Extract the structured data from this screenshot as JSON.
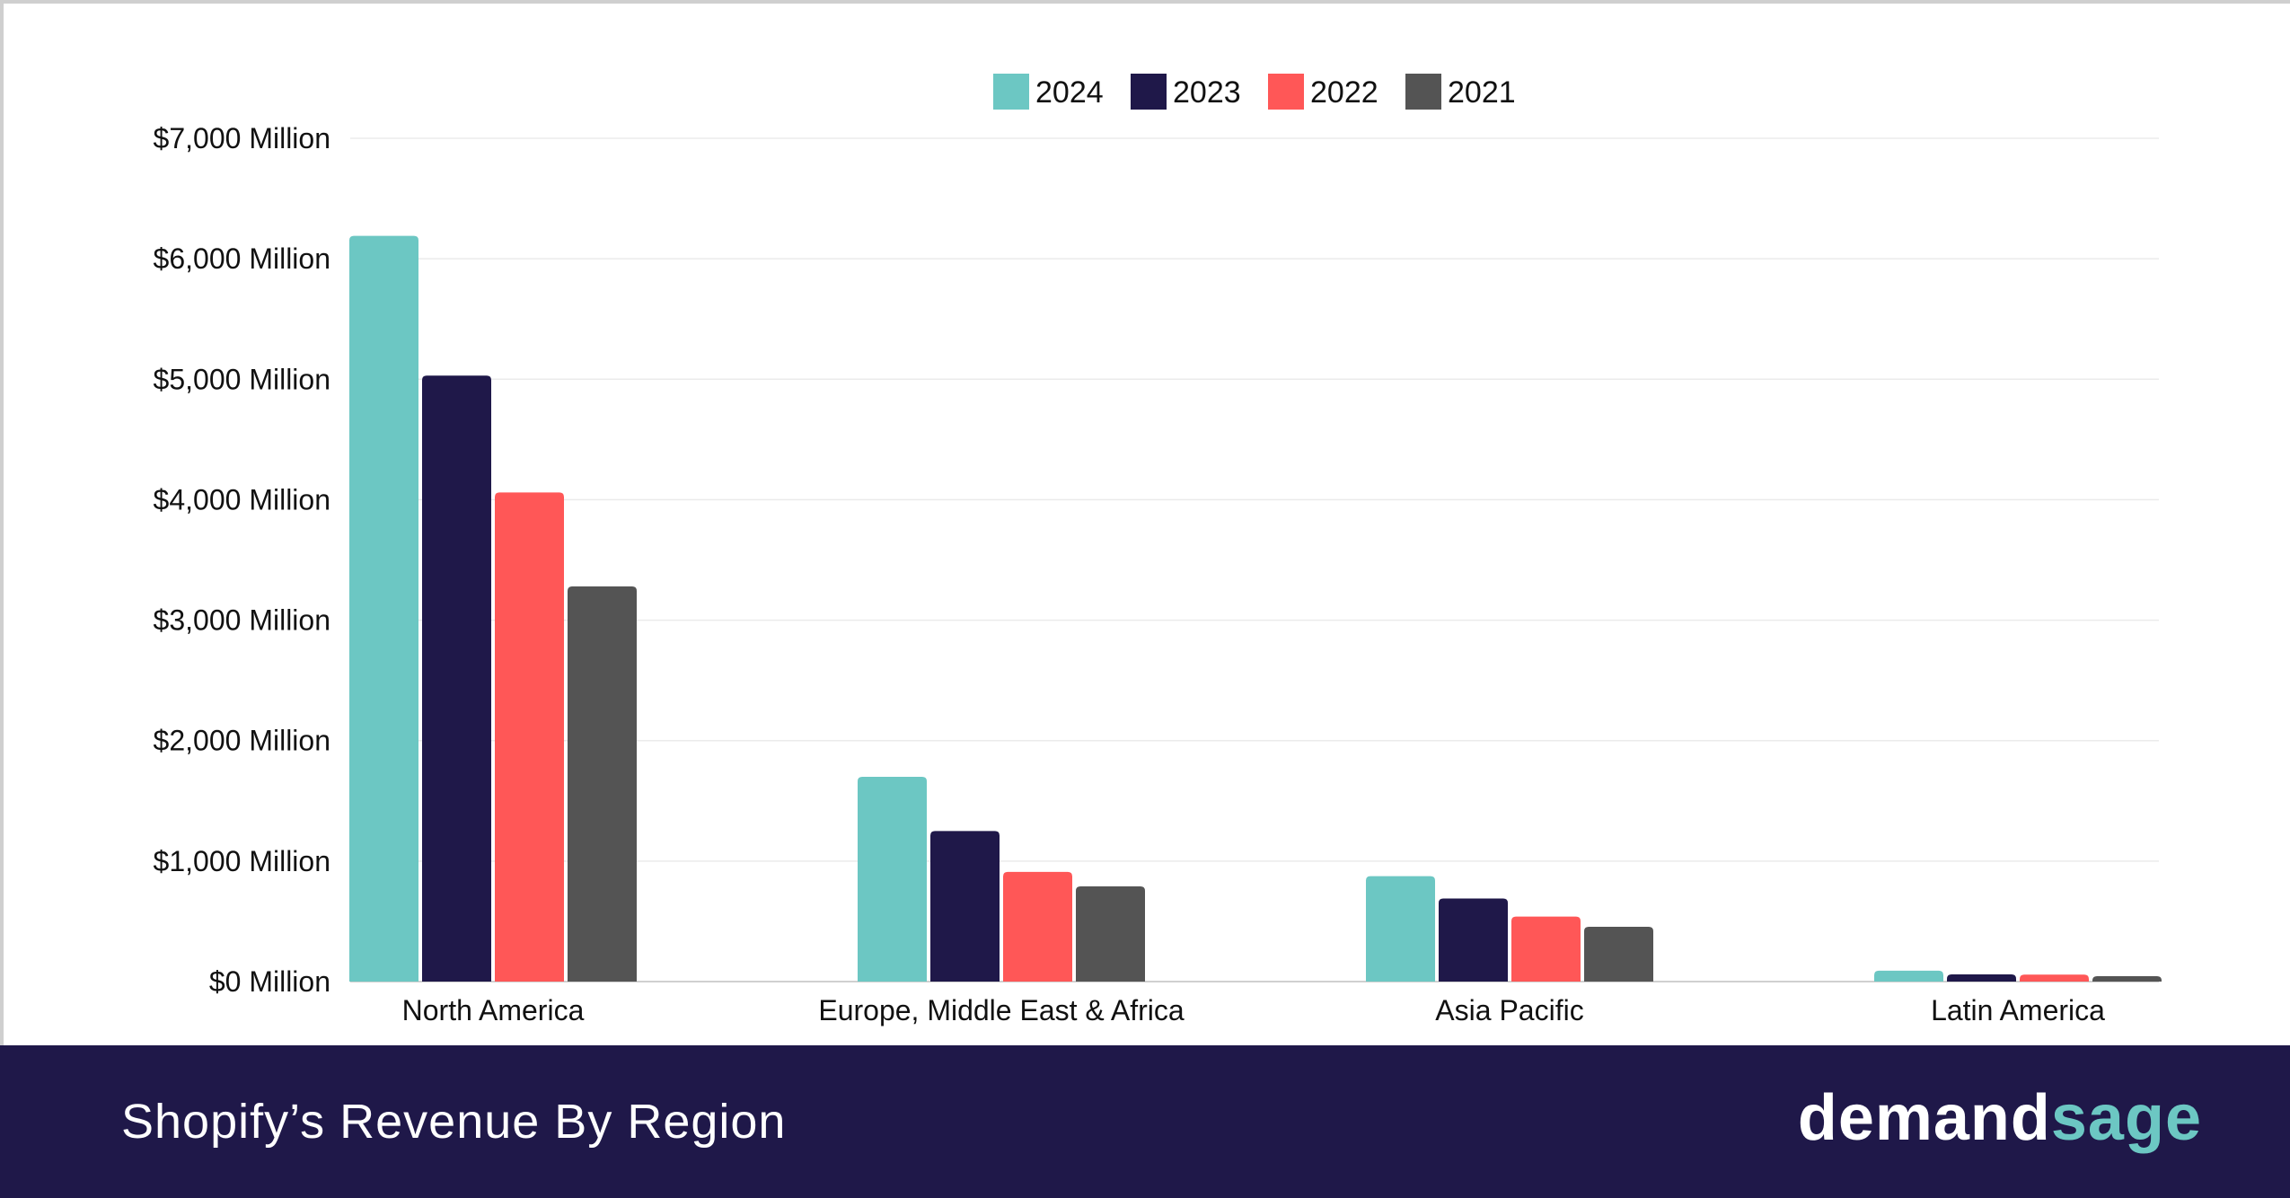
{
  "chart_data": {
    "type": "bar",
    "title": "Shopify’s Revenue By Region",
    "categories": [
      "North America",
      "Europe, Middle East & Africa",
      "Asia Pacific",
      "Latin America"
    ],
    "series": [
      {
        "name": "2024",
        "color": "#6cc7c3",
        "values": [
          6190,
          1700,
          875,
          90
        ]
      },
      {
        "name": "2023",
        "color": "#1f1849",
        "values": [
          5030,
          1250,
          690,
          60
        ]
      },
      {
        "name": "2022",
        "color": "#ff5757",
        "values": [
          4060,
          910,
          540,
          58
        ]
      },
      {
        "name": "2021",
        "color": "#545454",
        "values": [
          3280,
          790,
          455,
          45
        ]
      }
    ],
    "ylim": [
      0,
      7000
    ],
    "yticks": [
      0,
      1000,
      2000,
      3000,
      4000,
      5000,
      6000,
      7000
    ],
    "ytick_labels": [
      "$0 Million",
      "$1,000 Million",
      "$2,000 Million",
      "$3,000 Million",
      "$4,000 Million",
      "$5,000 Million",
      "$6,000 Million",
      "$7,000 Million"
    ],
    "xlabel": "",
    "ylabel": "",
    "grid": true,
    "legend_position": "top-center"
  },
  "footer": {
    "title": "Shopify’s Revenue By Region",
    "logo_part1": "demand",
    "logo_part2": "sage"
  }
}
